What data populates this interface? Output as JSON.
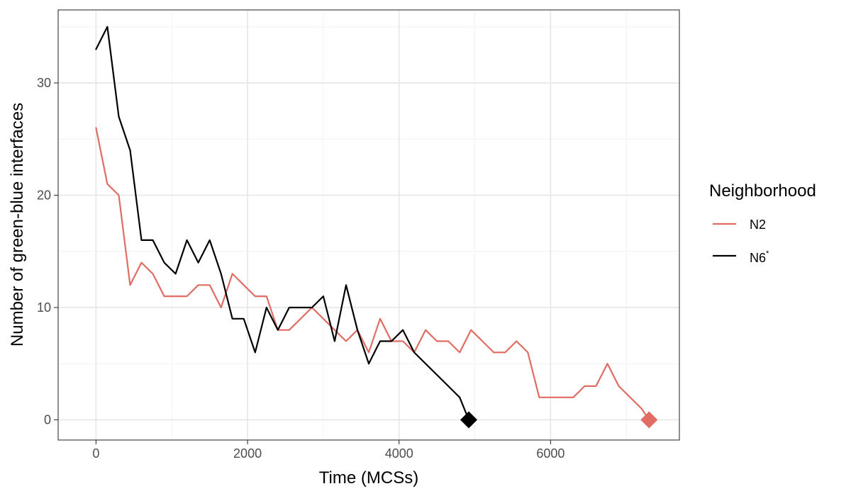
{
  "chart_data": {
    "type": "line",
    "xlabel": "Time (MCSs)",
    "ylabel": "Number of green-blue interfaces",
    "xlim": [
      -500,
      7700
    ],
    "ylim": [
      -1.8,
      36.5
    ],
    "x_ticks": [
      0,
      2000,
      4000,
      6000
    ],
    "y_ticks": [
      0,
      10,
      20,
      30
    ],
    "grid": true,
    "legend": {
      "title": "Neighborhood",
      "position": "right"
    },
    "series": [
      {
        "name": "N2",
        "color": "#e06c64",
        "end_marker": "diamond",
        "x": [
          0,
          150,
          300,
          450,
          600,
          750,
          900,
          1050,
          1200,
          1350,
          1500,
          1650,
          1800,
          1950,
          2100,
          2250,
          2400,
          2550,
          2700,
          2850,
          3000,
          3150,
          3300,
          3450,
          3600,
          3750,
          3900,
          4050,
          4200,
          4350,
          4500,
          4650,
          4800,
          4950,
          5100,
          5250,
          5400,
          5550,
          5700,
          5850,
          6000,
          6150,
          6300,
          6450,
          6600,
          6750,
          6900,
          7050,
          7200,
          7300
        ],
        "y": [
          26,
          21,
          20,
          12,
          14,
          13,
          11,
          11,
          11,
          12,
          12,
          10,
          13,
          12,
          11,
          11,
          8,
          8,
          9,
          10,
          9,
          8,
          7,
          8,
          6,
          9,
          7,
          7,
          6,
          8,
          7,
          7,
          6,
          8,
          7,
          6,
          6,
          7,
          6,
          2,
          2,
          2,
          2,
          3,
          3,
          5,
          3,
          2,
          1,
          0
        ]
      },
      {
        "name": "N6",
        "name_superscript": "*",
        "color": "#000000",
        "end_marker": "diamond",
        "x": [
          0,
          150,
          300,
          450,
          600,
          750,
          900,
          1050,
          1200,
          1350,
          1500,
          1650,
          1800,
          1950,
          2100,
          2250,
          2400,
          2550,
          2700,
          2850,
          3000,
          3150,
          3300,
          3450,
          3600,
          3750,
          3900,
          4050,
          4200,
          4800,
          4920
        ],
        "y": [
          33,
          35,
          27,
          24,
          16,
          16,
          14,
          13,
          16,
          14,
          16,
          13,
          9,
          9,
          6,
          10,
          8,
          10,
          10,
          10,
          11,
          7,
          12,
          8,
          5,
          7,
          7,
          8,
          6,
          2,
          0
        ]
      }
    ]
  }
}
